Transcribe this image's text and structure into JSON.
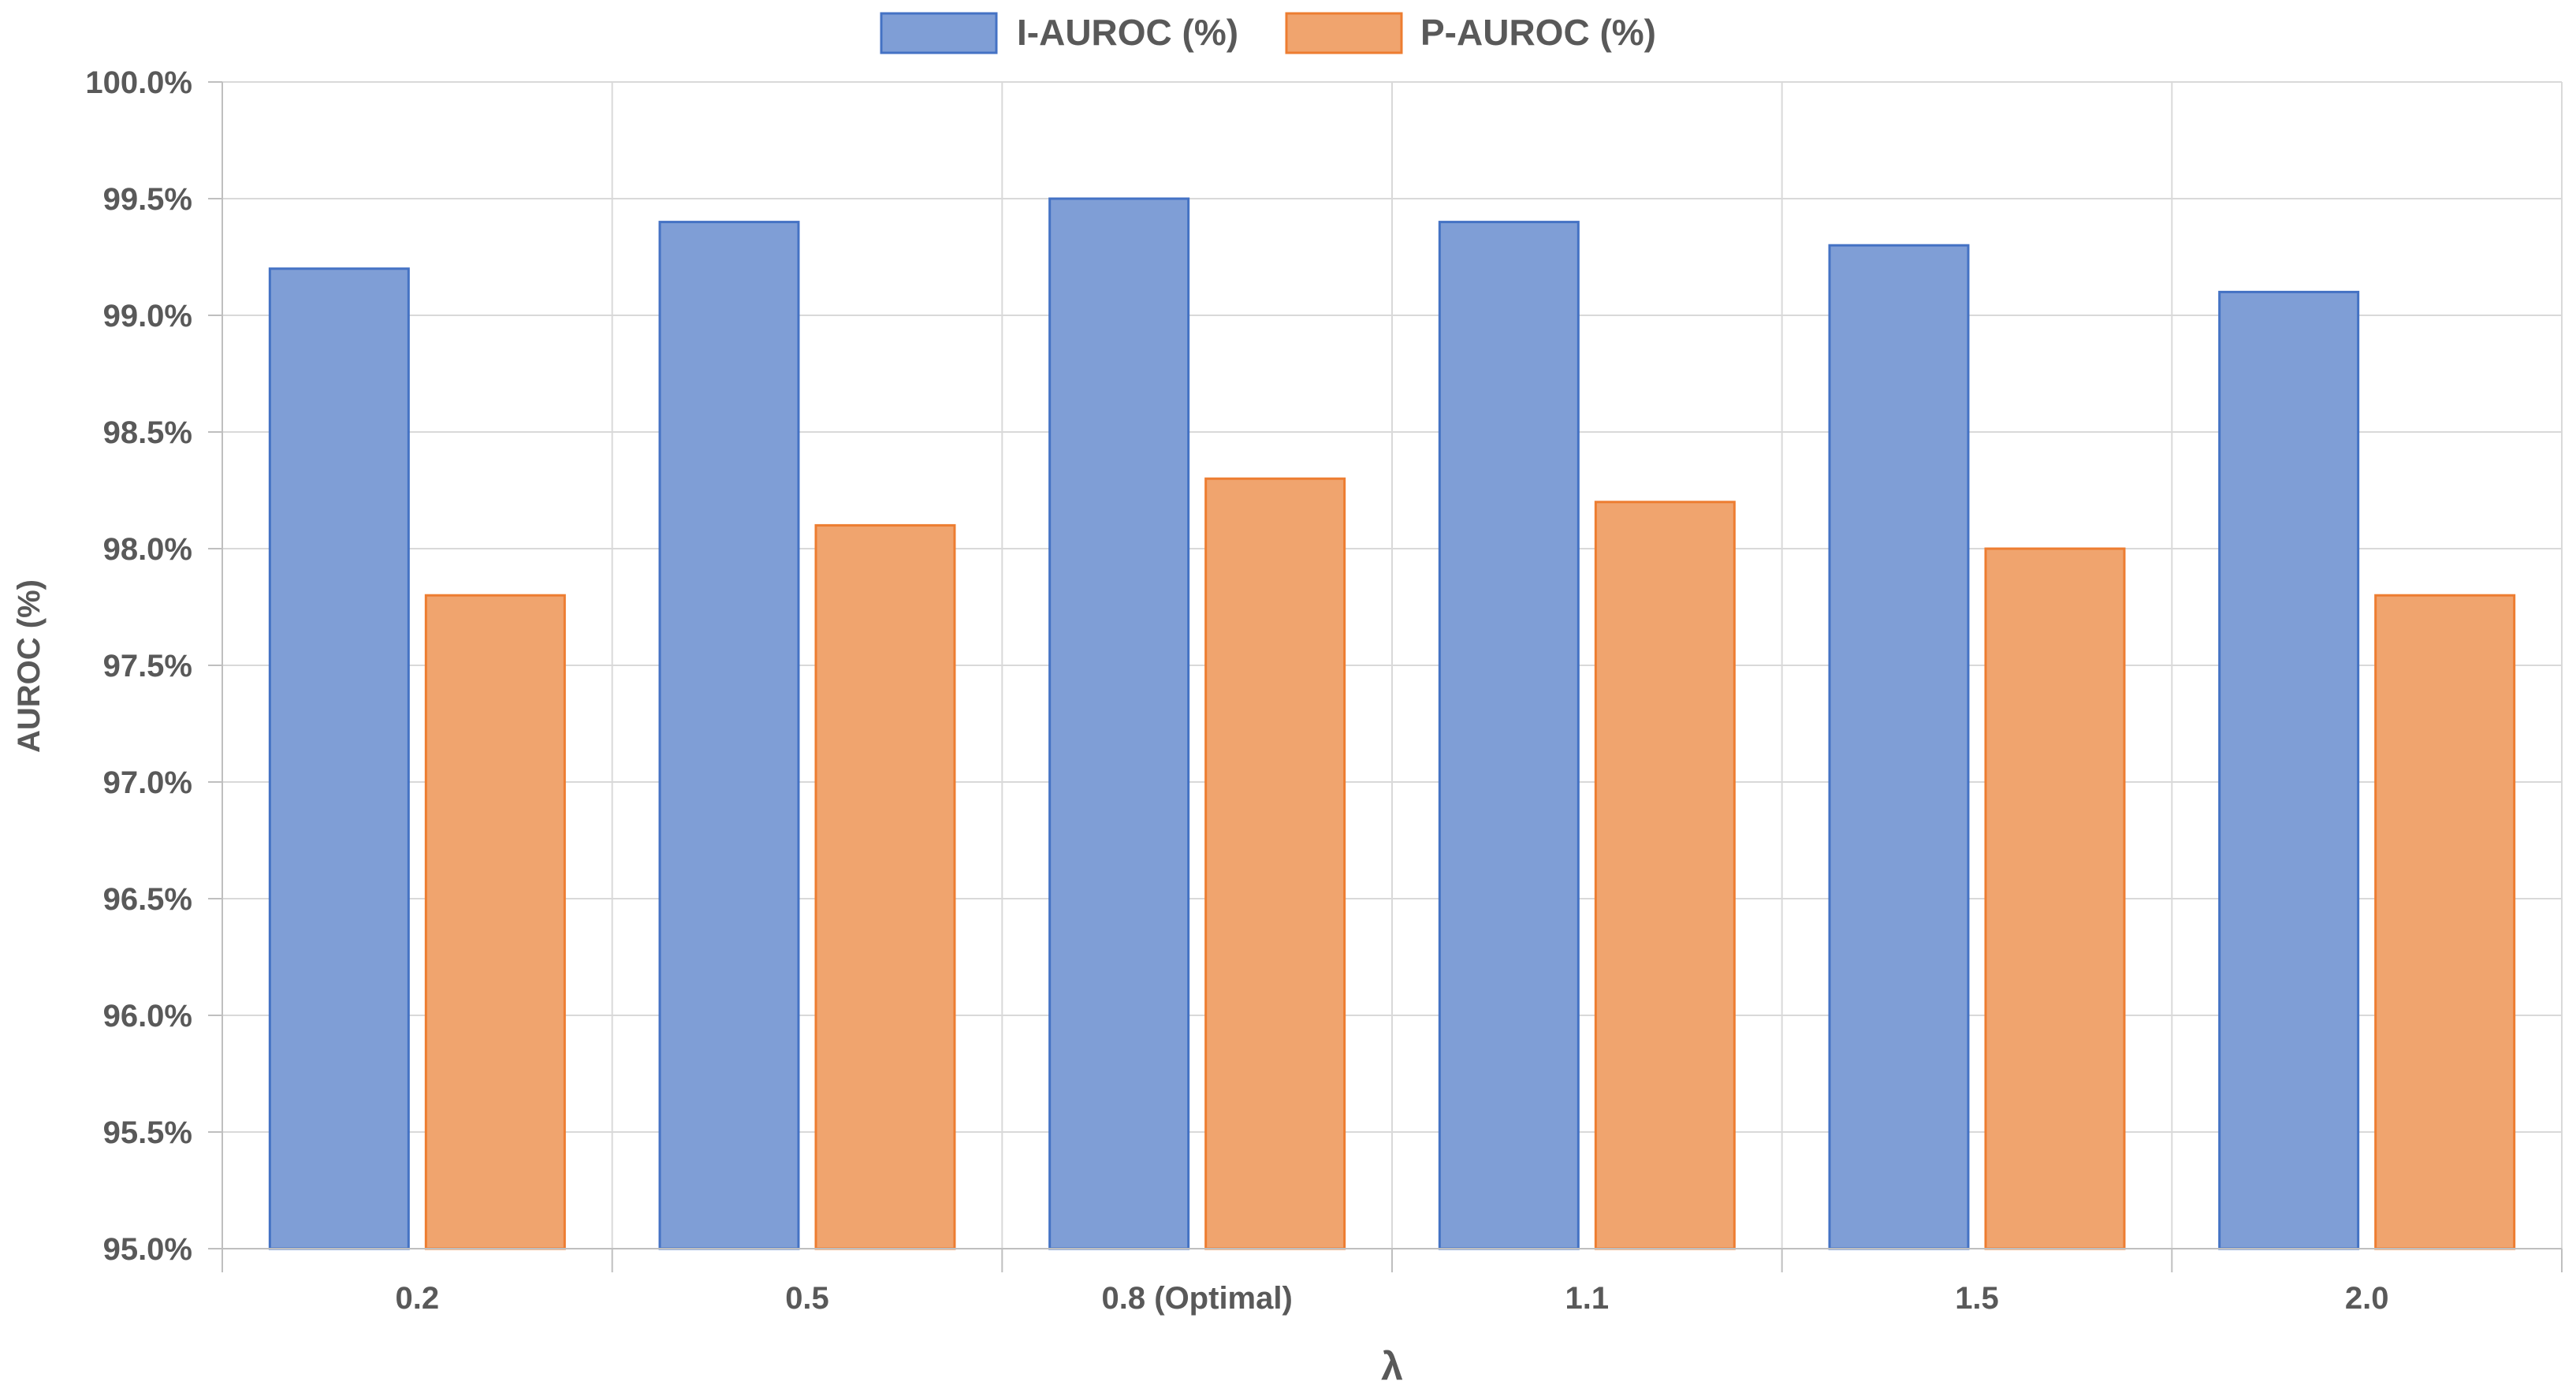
{
  "chart_data": {
    "type": "bar",
    "categories": [
      "0.2",
      "0.5",
      "0.8 (Optimal)",
      "1.1",
      "1.5",
      "2.0"
    ],
    "series": [
      {
        "name": "I-AUROC (%)",
        "values": [
          99.2,
          99.4,
          99.5,
          99.4,
          99.3,
          99.1
        ],
        "color": "#7f9ed6",
        "stroke": "#4472c4"
      },
      {
        "name": "P-AUROC (%)",
        "values": [
          97.8,
          98.1,
          98.3,
          98.2,
          98.0,
          97.8
        ],
        "color": "#f0a46e",
        "stroke": "#ed7d31"
      }
    ],
    "xlabel": "λ",
    "ylabel": "AUROC (%)",
    "ylim": [
      95.0,
      100.0
    ],
    "yticks": [
      "95.0%",
      "95.5%",
      "96.0%",
      "96.5%",
      "97.0%",
      "97.5%",
      "98.0%",
      "98.5%",
      "99.0%",
      "99.5%",
      "100.0%"
    ],
    "ytick_values": [
      95.0,
      95.5,
      96.0,
      96.5,
      97.0,
      97.5,
      98.0,
      98.5,
      99.0,
      99.5,
      100.0
    ],
    "grid": true,
    "legend_position": "top-center",
    "gridline_color": "#d9d9d9",
    "axis_color": "#bfbfbf"
  }
}
